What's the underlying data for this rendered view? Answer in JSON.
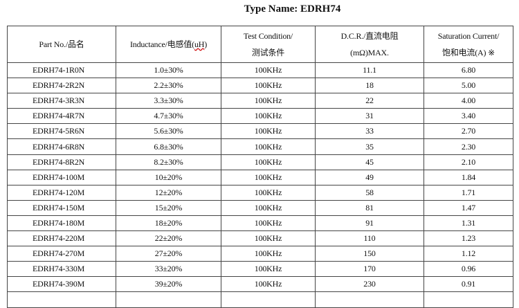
{
  "title": "Type Name: EDRH74",
  "headers": {
    "part_no": "Part No./品名",
    "inductance_pre": "Inductance/电感值(",
    "inductance_unit": "uH",
    "inductance_post": ")",
    "test_line1": "Test Condition/",
    "test_line2": "测试条件",
    "dcr_line1": "D.C.R./直流电阻",
    "dcr_line2": "(mΩ)MAX.",
    "sat_line1": "Saturation Current/",
    "sat_line2": "饱和电流(A)  ※"
  },
  "rows": [
    {
      "part": "EDRH74-1R0N",
      "ind": "1.0±30%",
      "test": "100KHz",
      "dcr": "11.1",
      "sat": "6.80"
    },
    {
      "part": "EDRH74-2R2N",
      "ind": "2.2±30%",
      "test": "100KHz",
      "dcr": "18",
      "sat": "5.00"
    },
    {
      "part": "EDRH74-3R3N",
      "ind": "3.3±30%",
      "test": "100KHz",
      "dcr": "22",
      "sat": "4.00"
    },
    {
      "part": "EDRH74-4R7N",
      "ind": "4.7±30%",
      "test": "100KHz",
      "dcr": "31",
      "sat": "3.40"
    },
    {
      "part": "EDRH74-5R6N",
      "ind": "5.6±30%",
      "test": "100KHz",
      "dcr": "33",
      "sat": "2.70"
    },
    {
      "part": "EDRH74-6R8N",
      "ind": "6.8±30%",
      "test": "100KHz",
      "dcr": "35",
      "sat": "2.30"
    },
    {
      "part": "EDRH74-8R2N",
      "ind": "8.2±30%",
      "test": "100KHz",
      "dcr": "45",
      "sat": "2.10"
    },
    {
      "part": "EDRH74-100M",
      "ind": "10±20%",
      "test": "100KHz",
      "dcr": "49",
      "sat": "1.84"
    },
    {
      "part": "EDRH74-120M",
      "ind": "12±20%",
      "test": "100KHz",
      "dcr": "58",
      "sat": "1.71"
    },
    {
      "part": "EDRH74-150M",
      "ind": "15±20%",
      "test": "100KHz",
      "dcr": "81",
      "sat": "1.47"
    },
    {
      "part": "EDRH74-180M",
      "ind": "18±20%",
      "test": "100KHz",
      "dcr": "91",
      "sat": "1.31"
    },
    {
      "part": "EDRH74-220M",
      "ind": "22±20%",
      "test": "100KHz",
      "dcr": "110",
      "sat": "1.23"
    },
    {
      "part": "EDRH74-270M",
      "ind": "27±20%",
      "test": "100KHz",
      "dcr": "150",
      "sat": "1.12"
    },
    {
      "part": "EDRH74-330M",
      "ind": "33±20%",
      "test": "100KHz",
      "dcr": "170",
      "sat": "0.96"
    },
    {
      "part": "EDRH74-390M",
      "ind": "39±20%",
      "test": "100KHz",
      "dcr": "230",
      "sat": "0.91"
    }
  ]
}
